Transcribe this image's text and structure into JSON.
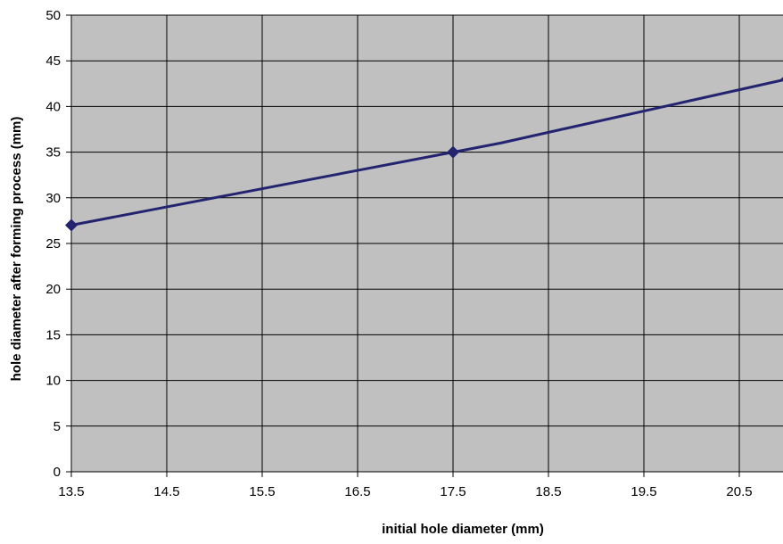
{
  "chart_data": {
    "type": "line",
    "title": "",
    "xlabel": "initial hole diameter (mm)",
    "ylabel": "hole diameter after forming process (mm)",
    "x_ticks": [
      "13.5",
      "14.5",
      "15.5",
      "16.5",
      "17.5",
      "18.5",
      "19.5",
      "20.5"
    ],
    "y_ticks": [
      "0",
      "5",
      "10",
      "15",
      "20",
      "25",
      "30",
      "35",
      "40",
      "45",
      "50"
    ],
    "xlim": [
      13.5,
      21.0
    ],
    "ylim": [
      0,
      50
    ],
    "grid": true,
    "legend": "none",
    "colors": {
      "plot_background": "#c0c0c0",
      "line": "#232370",
      "marker": "#232370",
      "grid": "#000000"
    },
    "series": [
      {
        "x": [
          13.5,
          16.5,
          17.5,
          18.0,
          21.0
        ],
        "y": [
          27,
          33,
          35,
          36,
          43
        ],
        "markers_at": [
          13.5,
          17.5,
          21.0
        ]
      }
    ]
  }
}
